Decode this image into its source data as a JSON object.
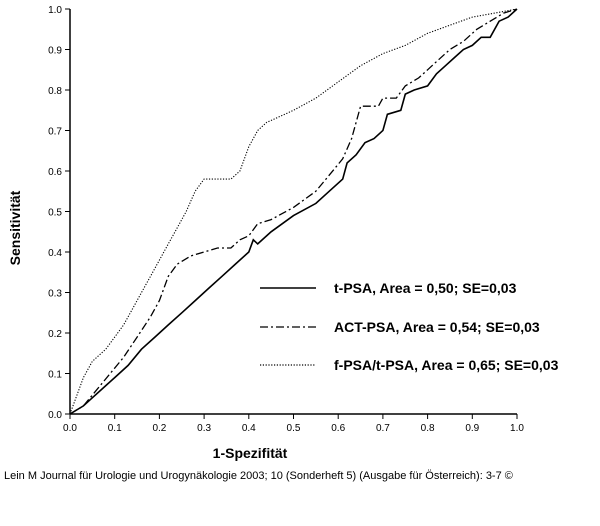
{
  "chart_data": {
    "type": "line",
    "xlabel": "1-Spezifität",
    "ylabel": "Sensitivität",
    "xlim": [
      0,
      1
    ],
    "ylim": [
      0,
      1
    ],
    "xticks": [
      "0.0",
      "0.1",
      "0.2",
      "0.3",
      "0.4",
      "0.5",
      "0.6",
      "0.7",
      "0.8",
      "0.9",
      "1.0"
    ],
    "yticks": [
      "0.0",
      "0.1",
      "0.2",
      "0.3",
      "0.4",
      "0.5",
      "0.6",
      "0.7",
      "0.8",
      "0.9",
      "1.0"
    ],
    "grid": false,
    "legend_position": "lower-right",
    "series": [
      {
        "name": "t-PSA, Area = 0,50; SE=0,03",
        "style": "solid",
        "x": [
          0,
          0.03,
          0.05,
          0.08,
          0.1,
          0.13,
          0.16,
          0.19,
          0.22,
          0.25,
          0.28,
          0.31,
          0.34,
          0.37,
          0.4,
          0.41,
          0.42,
          0.45,
          0.5,
          0.55,
          0.58,
          0.61,
          0.62,
          0.64,
          0.66,
          0.68,
          0.7,
          0.71,
          0.74,
          0.75,
          0.77,
          0.8,
          0.82,
          0.84,
          0.86,
          0.88,
          0.9,
          0.92,
          0.94,
          0.96,
          0.98,
          1.0
        ],
        "y": [
          0,
          0.02,
          0.04,
          0.07,
          0.09,
          0.12,
          0.16,
          0.19,
          0.22,
          0.25,
          0.28,
          0.31,
          0.34,
          0.37,
          0.4,
          0.43,
          0.42,
          0.45,
          0.49,
          0.52,
          0.55,
          0.58,
          0.62,
          0.64,
          0.67,
          0.68,
          0.7,
          0.74,
          0.75,
          0.79,
          0.8,
          0.81,
          0.84,
          0.86,
          0.88,
          0.9,
          0.91,
          0.93,
          0.93,
          0.97,
          0.98,
          1.0
        ]
      },
      {
        "name": "ACT-PSA, Area = 0,54; SE=0,03",
        "style": "dashdot",
        "x": [
          0,
          0.03,
          0.06,
          0.09,
          0.12,
          0.15,
          0.18,
          0.2,
          0.22,
          0.24,
          0.27,
          0.3,
          0.33,
          0.36,
          0.38,
          0.4,
          0.42,
          0.45,
          0.5,
          0.55,
          0.58,
          0.61,
          0.63,
          0.65,
          0.67,
          0.69,
          0.7,
          0.73,
          0.75,
          0.78,
          0.8,
          0.82,
          0.85,
          0.88,
          0.91,
          0.94,
          0.97,
          1.0
        ],
        "y": [
          0,
          0.02,
          0.06,
          0.1,
          0.14,
          0.19,
          0.24,
          0.28,
          0.34,
          0.37,
          0.39,
          0.4,
          0.41,
          0.41,
          0.43,
          0.44,
          0.47,
          0.48,
          0.51,
          0.55,
          0.59,
          0.63,
          0.68,
          0.76,
          0.76,
          0.76,
          0.78,
          0.78,
          0.81,
          0.83,
          0.85,
          0.87,
          0.9,
          0.92,
          0.95,
          0.97,
          0.99,
          1.0
        ]
      },
      {
        "name": "f-PSA/t-PSA, Area = 0,65; SE=0,03",
        "style": "dotted",
        "x": [
          0,
          0.03,
          0.05,
          0.08,
          0.1,
          0.12,
          0.14,
          0.16,
          0.18,
          0.2,
          0.22,
          0.24,
          0.26,
          0.28,
          0.3,
          0.32,
          0.34,
          0.36,
          0.38,
          0.4,
          0.42,
          0.44,
          0.46,
          0.5,
          0.55,
          0.6,
          0.65,
          0.7,
          0.75,
          0.8,
          0.85,
          0.9,
          0.95,
          1.0
        ],
        "y": [
          0,
          0.09,
          0.13,
          0.16,
          0.19,
          0.22,
          0.26,
          0.3,
          0.34,
          0.38,
          0.42,
          0.46,
          0.5,
          0.55,
          0.58,
          0.58,
          0.58,
          0.58,
          0.6,
          0.66,
          0.7,
          0.72,
          0.73,
          0.75,
          0.78,
          0.82,
          0.86,
          0.89,
          0.91,
          0.94,
          0.96,
          0.98,
          0.99,
          1.0
        ]
      }
    ]
  },
  "caption": "Lein M Journal für Urologie und Urogynäkologie 2003; 10 (Sonderheft 5) (Ausgabe für Österreich): 3-7 ©"
}
